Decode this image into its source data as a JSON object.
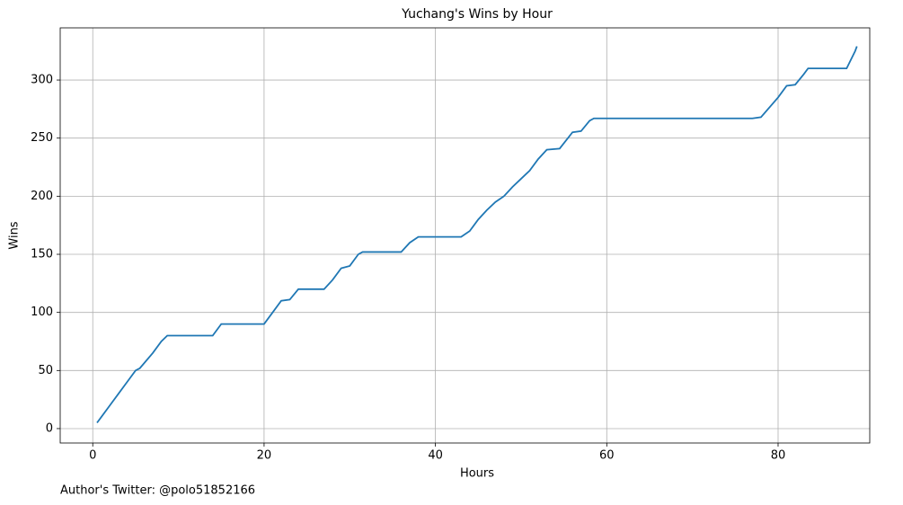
{
  "chart_data": {
    "type": "line",
    "title": "Yuchang's Wins by Hour",
    "xlabel": "Hours",
    "ylabel": "Wins",
    "annotation": "Author's Twitter: @polo51852166",
    "x": [
      0.5,
      1,
      2,
      3,
      4,
      5,
      5.5,
      7,
      8,
      8.7,
      14,
      15,
      20,
      21,
      22,
      23,
      24,
      27,
      28,
      29,
      30,
      31,
      31.5,
      36,
      37,
      38,
      43,
      44,
      45,
      46,
      47,
      48,
      49,
      50,
      51,
      52,
      53,
      54.5,
      56,
      57,
      58,
      58.5,
      77,
      78,
      80,
      81,
      82,
      83,
      83.5,
      88,
      89,
      89.2
    ],
    "series": [
      {
        "name": "Wins",
        "color": "#1f77b4",
        "values": [
          5,
          10,
          20,
          30,
          40,
          50,
          52,
          65,
          75,
          80,
          80,
          90,
          90,
          100,
          110,
          111,
          120,
          120,
          128,
          138,
          140,
          150,
          152,
          152,
          160,
          165,
          165,
          170,
          180,
          188,
          195,
          200,
          208,
          215,
          222,
          232,
          240,
          241,
          255,
          256,
          265,
          267,
          267,
          268,
          285,
          295,
          296,
          305,
          310,
          310,
          325,
          329
        ]
      }
    ],
    "xlim": [
      -3.8,
      90.7
    ],
    "xticks": [
      0,
      20,
      40,
      60,
      80
    ],
    "ylim": [
      -12.4,
      344.9
    ],
    "yticks": [
      0,
      50,
      100,
      150,
      200,
      250,
      300
    ],
    "grid": true,
    "legend": false
  }
}
